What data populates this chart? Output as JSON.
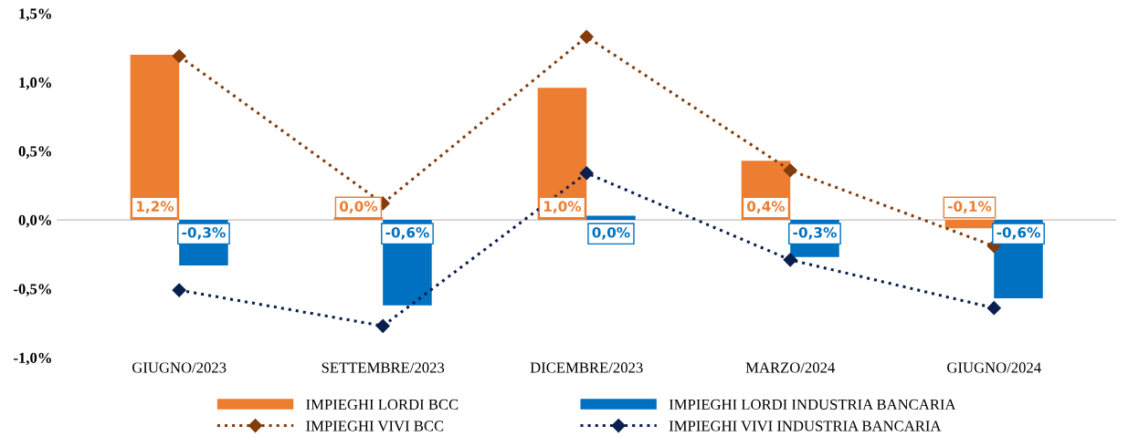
{
  "chart_data": {
    "type": "bar",
    "categories": [
      "GIUGNO/2023",
      "SETTEMBRE/2023",
      "DICEMBRE/2023",
      "MARZO/2024",
      "GIUGNO/2024"
    ],
    "series": [
      {
        "name": "IMPIEGHI LORDI BCC",
        "color": "#ed7d31",
        "values": [
          1.2,
          0.02,
          0.96,
          0.43,
          -0.06
        ],
        "value_labels": [
          "1,2%",
          "0,0%",
          "1,0%",
          "0,4%",
          "-0,1%"
        ]
      },
      {
        "name": "IMPIEGHI LORDI INDUSTRIA BANCARIA",
        "color": "#0070c0",
        "values": [
          -0.33,
          -0.62,
          0.03,
          -0.27,
          -0.57
        ],
        "value_labels": [
          "-0,3%",
          "-0,6%",
          "0,0%",
          "-0,3%",
          "-0,6%"
        ]
      },
      {
        "name": "IMPIEGHI VIVI BCC",
        "type": "line",
        "color": "#843c0c",
        "values": [
          1.19,
          0.12,
          1.33,
          0.36,
          -0.19
        ]
      },
      {
        "name": "IMPIEGHI VIVI INDUSTRIA BANCARIA",
        "type": "line",
        "color": "#0b1f4f",
        "values": [
          -0.51,
          -0.77,
          0.34,
          -0.29,
          -0.64
        ]
      }
    ],
    "ylim": [
      -1.0,
      1.5
    ],
    "yticks": [
      {
        "value": -1.0,
        "label": "-1,0%"
      },
      {
        "value": -0.5,
        "label": "-0,5%"
      },
      {
        "value": 0.0,
        "label": "0,0%"
      },
      {
        "value": 0.5,
        "label": "0,5%"
      },
      {
        "value": 1.0,
        "label": "1,0%"
      },
      {
        "value": 1.5,
        "label": "1,5%"
      }
    ],
    "ref_lines": [
      {
        "axis": "y",
        "value": 0,
        "color": "#bfbfbf"
      }
    ],
    "grid": false,
    "legend": "bottom",
    "marker": "diamond",
    "line_style": "dotted"
  }
}
